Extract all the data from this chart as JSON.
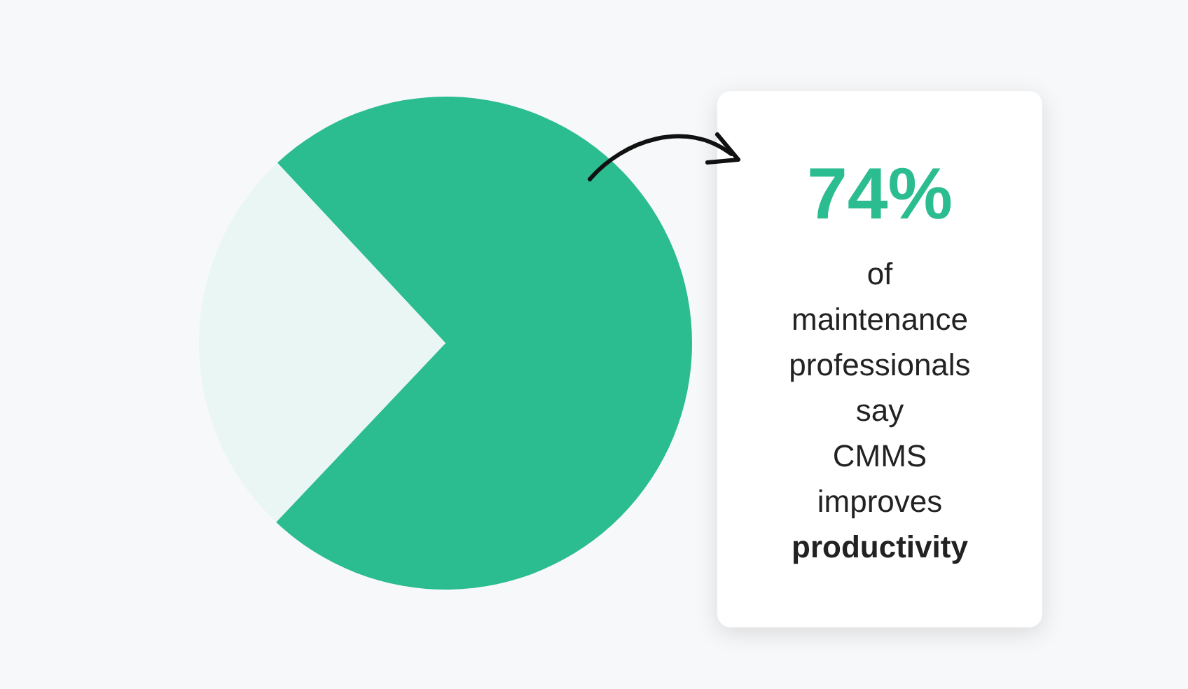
{
  "chart_data": {
    "type": "pie",
    "categories": [
      null,
      null
    ],
    "values": [
      74,
      26
    ],
    "colors": [
      "#2bbd8f",
      "#eaf6f3"
    ],
    "value_labels": [
      "74%",
      null
    ],
    "annotations": [
      "of maintenance professionals say CMMS improves productivity"
    ]
  }
}
